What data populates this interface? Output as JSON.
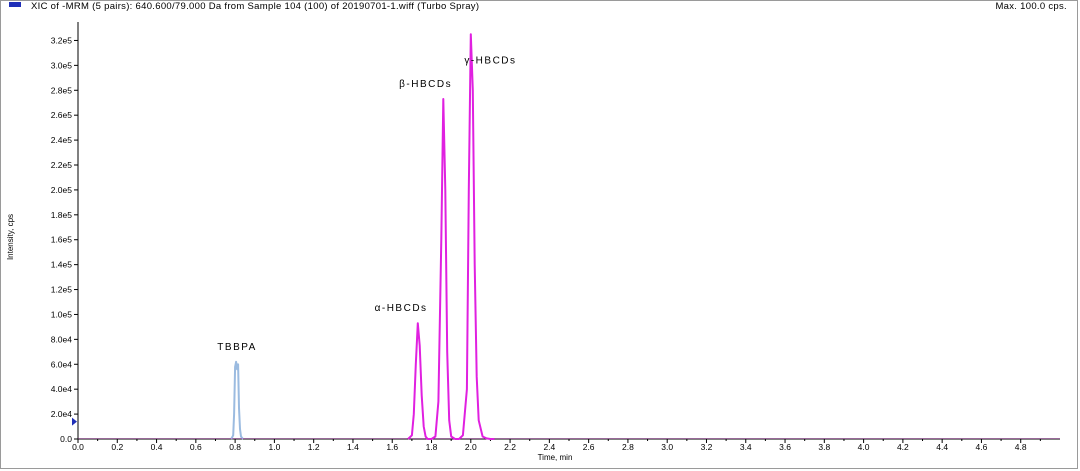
{
  "header": {
    "title": "XIC of -MRM (5 pairs): 640.600/79.000 Da  from Sample 104 (100) of 20190701-1.wiff (Turbo Spray)",
    "max": "Max. 100.0 cps.",
    "legend_color": "#1f2fb8"
  },
  "chart_data": {
    "type": "line",
    "xlabel": "Time, min",
    "ylabel": "Intensity, cps",
    "xlim": [
      0.0,
      5.0
    ],
    "ylim": [
      0,
      330000
    ],
    "x_ticks": [
      "0.0",
      "0.2",
      "0.4",
      "0.6",
      "0.8",
      "1.0",
      "1.2",
      "1.4",
      "1.6",
      "1.8",
      "2.0",
      "2.2",
      "2.4",
      "2.6",
      "2.8",
      "3.0",
      "3.2",
      "3.4",
      "3.6",
      "3.8",
      "4.0",
      "4.2",
      "4.4",
      "4.6",
      "4.8"
    ],
    "y_ticks": [
      "0.0",
      "2.0e4",
      "4.0e4",
      "6.0e4",
      "8.0e4",
      "1.0e5",
      "1.2e5",
      "1.4e5",
      "1.6e5",
      "1.8e5",
      "2.0e5",
      "2.2e5",
      "2.4e5",
      "2.6e5",
      "2.8e5",
      "3.0e5",
      "3.2e5"
    ],
    "grid": false,
    "series": [
      {
        "color": "#9bbbe0",
        "x": [
          0.78,
          0.79,
          0.795,
          0.8,
          0.805,
          0.81,
          0.815,
          0.82,
          0.825,
          0.83,
          0.84
        ],
        "y": [
          0,
          3000,
          20000,
          58000,
          62000,
          56000,
          60000,
          25000,
          8000,
          2000,
          0
        ]
      },
      {
        "color": "#e020e0",
        "x": [
          1.68,
          1.7,
          1.71,
          1.72,
          1.73,
          1.74,
          1.75,
          1.76,
          1.77,
          1.78,
          1.8,
          1.82,
          1.835,
          1.85,
          1.86,
          1.87,
          1.88,
          1.89,
          1.9,
          1.92,
          1.94,
          1.96,
          1.98,
          1.99,
          2.0,
          2.01,
          2.02,
          2.03,
          2.04,
          2.06,
          2.08,
          2.1,
          2.12
        ],
        "y": [
          0,
          3000,
          20000,
          60000,
          93000,
          75000,
          35000,
          10000,
          2000,
          0,
          0,
          2000,
          30000,
          160000,
          273000,
          200000,
          70000,
          15000,
          2000,
          0,
          0,
          3000,
          40000,
          200000,
          325000,
          280000,
          140000,
          50000,
          15000,
          2000,
          500,
          0,
          0
        ]
      }
    ],
    "annotations": [
      {
        "text": "TBBPA",
        "x": 0.81,
        "y": 62000
      },
      {
        "text": "α-HBCDs",
        "x": 1.645,
        "y": 93000
      },
      {
        "text": "β-HBCDs",
        "x": 1.77,
        "y": 273000
      },
      {
        "text": "γ-HBCDs",
        "x": 2.1,
        "y": 292000
      }
    ]
  }
}
